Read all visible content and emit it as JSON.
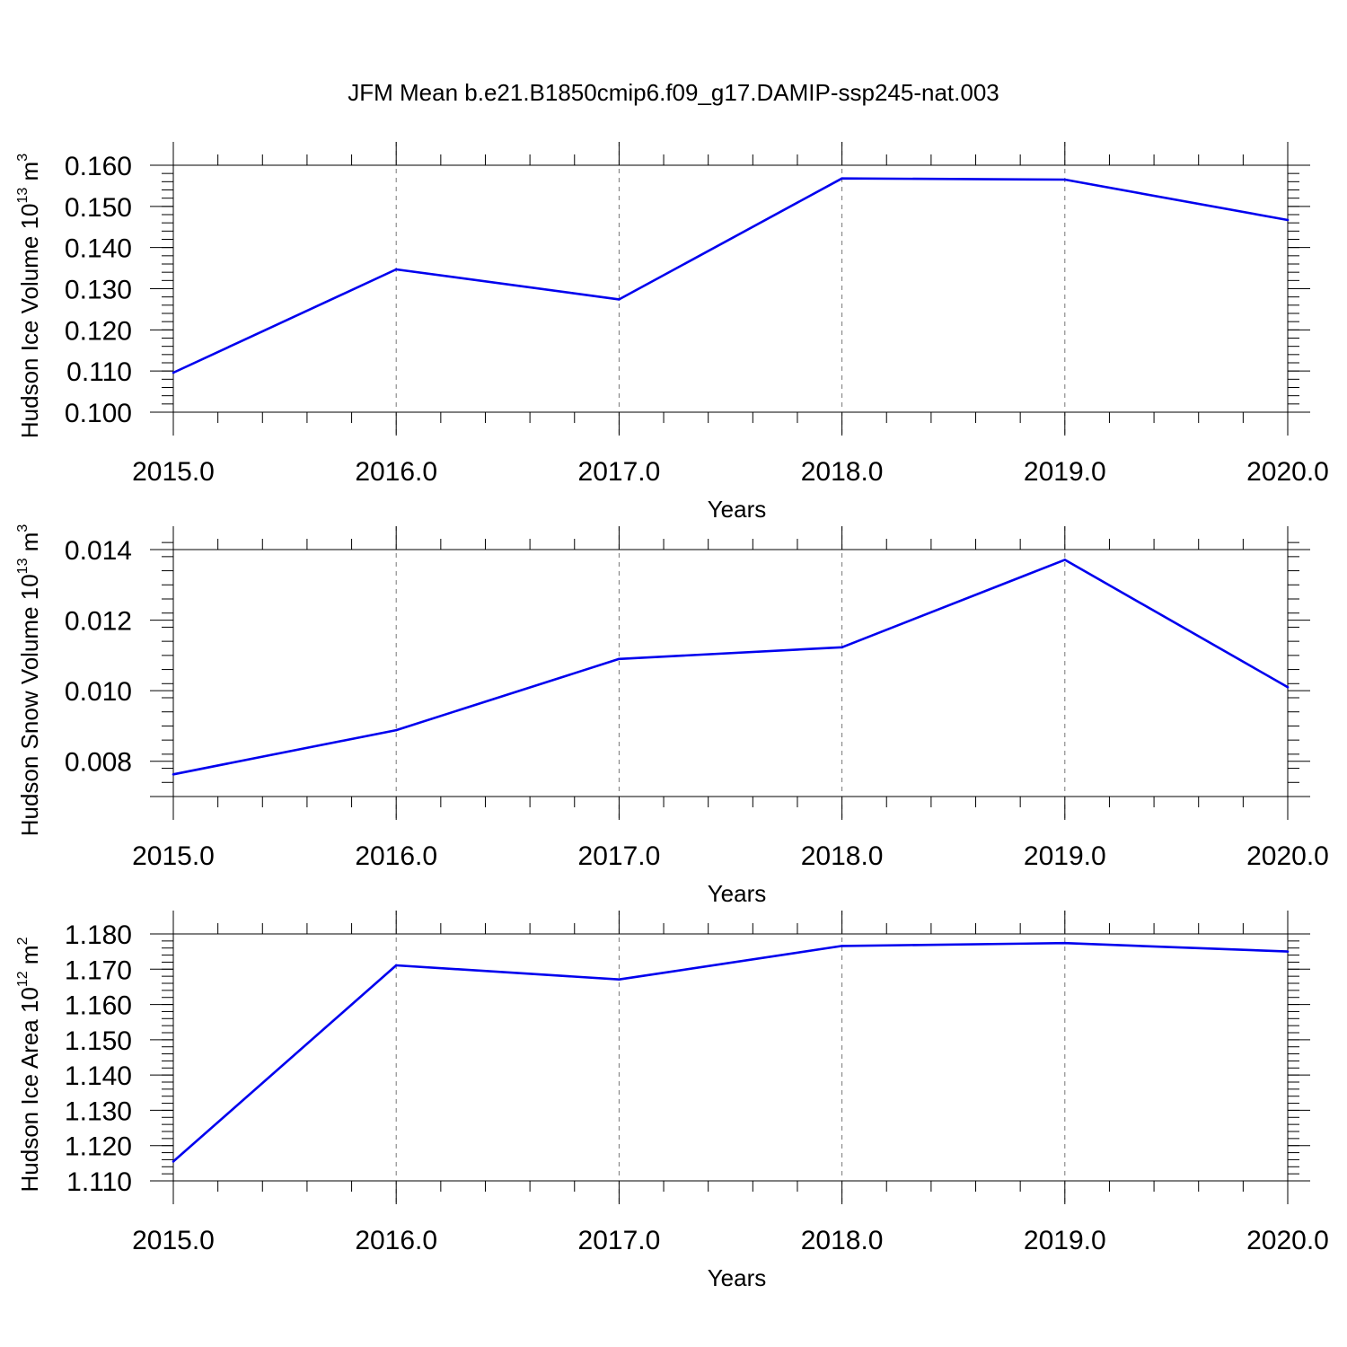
{
  "title": "JFM Mean b.e21.B1850cmip6.f09_g17.DAMIP-ssp245-nat.003",
  "colors": {
    "line": "#0000ee",
    "grid": "#777777"
  },
  "chart_data": [
    {
      "type": "line",
      "ylabel_main": "Hudson Ice Volume 10",
      "ylabel_exp": "13",
      "ylabel_unit": " m",
      "ylabel_unit_exp": "3",
      "xlabel": "Years",
      "x": [
        2015,
        2016,
        2017,
        2018,
        2019,
        2020
      ],
      "x_tick_labels": [
        "2015.0",
        "2016.0",
        "2017.0",
        "2018.0",
        "2019.0",
        "2020.0"
      ],
      "xlim": [
        2015,
        2020
      ],
      "y": [
        0.1096,
        0.1347,
        0.1274,
        0.1568,
        0.1565,
        0.1467
      ],
      "ylim": [
        0.1,
        0.16
      ],
      "y_ticks": [
        0.1,
        0.11,
        0.12,
        0.13,
        0.14,
        0.15,
        0.16
      ],
      "y_tick_labels": [
        "0.100",
        "0.110",
        "0.120",
        "0.130",
        "0.140",
        "0.150",
        "0.160"
      ],
      "y_minor_step": 0.002,
      "grid": "vertical-dashed"
    },
    {
      "type": "line",
      "ylabel_main": "Hudson Snow Volume 10",
      "ylabel_exp": "13",
      "ylabel_unit": " m",
      "ylabel_unit_exp": "3",
      "xlabel": "Years",
      "x": [
        2015,
        2016,
        2017,
        2018,
        2019,
        2020
      ],
      "x_tick_labels": [
        "2015.0",
        "2016.0",
        "2017.0",
        "2018.0",
        "2019.0",
        "2020.0"
      ],
      "xlim": [
        2015,
        2020
      ],
      "y": [
        0.00763,
        0.00888,
        0.0109,
        0.01123,
        0.01371,
        0.0101
      ],
      "ylim": [
        0.007,
        0.014
      ],
      "y_ticks": [
        0.008,
        0.01,
        0.012,
        0.014
      ],
      "y_tick_labels": [
        "0.008",
        "0.010",
        "0.012",
        "0.014"
      ],
      "y_minor_step": 0.0004,
      "grid": "vertical-dashed"
    },
    {
      "type": "line",
      "ylabel_main": "Hudson Ice Area 10",
      "ylabel_exp": "12",
      "ylabel_unit": " m",
      "ylabel_unit_exp": "2",
      "xlabel": "Years",
      "x": [
        2015,
        2016,
        2017,
        2018,
        2019,
        2020
      ],
      "x_tick_labels": [
        "2015.0",
        "2016.0",
        "2017.0",
        "2018.0",
        "2019.0",
        "2020.0"
      ],
      "xlim": [
        2015,
        2020
      ],
      "y": [
        1.1155,
        1.1711,
        1.1671,
        1.1766,
        1.1774,
        1.175
      ],
      "ylim": [
        1.11,
        1.18
      ],
      "y_ticks": [
        1.11,
        1.12,
        1.13,
        1.14,
        1.15,
        1.16,
        1.17,
        1.18
      ],
      "y_tick_labels": [
        "1.110",
        "1.120",
        "1.130",
        "1.140",
        "1.150",
        "1.160",
        "1.170",
        "1.180"
      ],
      "y_minor_step": 0.002,
      "grid": "vertical-dashed"
    }
  ]
}
